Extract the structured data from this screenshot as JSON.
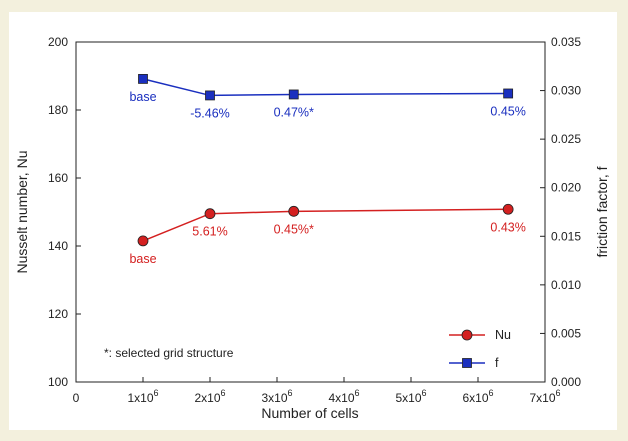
{
  "chart_data": {
    "type": "line",
    "xlabel": "Number of cells",
    "ylabel_left": "Nusselt number, Nu",
    "ylabel_right": "friction factor, f",
    "xlim": [
      0,
      7000000
    ],
    "ylim_left": [
      100,
      200
    ],
    "ylim_right": [
      0,
      0.035
    ],
    "x_ticks": [
      {
        "value": 0,
        "base": "0",
        "exp": ""
      },
      {
        "value": 1000000,
        "base": "1x10",
        "exp": "6"
      },
      {
        "value": 2000000,
        "base": "2x10",
        "exp": "6"
      },
      {
        "value": 3000000,
        "base": "3x10",
        "exp": "6"
      },
      {
        "value": 4000000,
        "base": "4x10",
        "exp": "6"
      },
      {
        "value": 5000000,
        "base": "5x10",
        "exp": "6"
      },
      {
        "value": 6000000,
        "base": "6x10",
        "exp": "6"
      },
      {
        "value": 7000000,
        "base": "7x10",
        "exp": "6"
      }
    ],
    "y_left_ticks": [
      {
        "value": 100,
        "label": "100"
      },
      {
        "value": 120,
        "label": "120"
      },
      {
        "value": 140,
        "label": "140"
      },
      {
        "value": 160,
        "label": "160"
      },
      {
        "value": 180,
        "label": "180"
      },
      {
        "value": 200,
        "label": "200"
      }
    ],
    "y_right_ticks": [
      {
        "value": 0.0,
        "label": "0.000"
      },
      {
        "value": 0.005,
        "label": "0.005"
      },
      {
        "value": 0.01,
        "label": "0.010"
      },
      {
        "value": 0.015,
        "label": "0.015"
      },
      {
        "value": 0.02,
        "label": "0.020"
      },
      {
        "value": 0.025,
        "label": "0.025"
      },
      {
        "value": 0.03,
        "label": "0.030"
      },
      {
        "value": 0.035,
        "label": "0.035"
      }
    ],
    "series": [
      {
        "name": "Nu",
        "axis": "left",
        "color": "#d42020",
        "marker": "circle",
        "x": [
          1000000,
          2000000,
          3250000,
          6450000
        ],
        "y": [
          141.5,
          149.5,
          150.2,
          150.8
        ],
        "labels": [
          "base",
          "5.61%",
          "0.45%*",
          "0.43%"
        ]
      },
      {
        "name": "f",
        "axis": "right",
        "color": "#1a2fbf",
        "marker": "square",
        "x": [
          1000000,
          2000000,
          3250000,
          6450000
        ],
        "y": [
          0.0312,
          0.0295,
          0.0296,
          0.0297
        ],
        "labels": [
          "base",
          "-5.46%",
          "0.47%*",
          "0.45%"
        ]
      }
    ],
    "note": "*: selected grid structure",
    "legend_position": "bottom-right"
  }
}
